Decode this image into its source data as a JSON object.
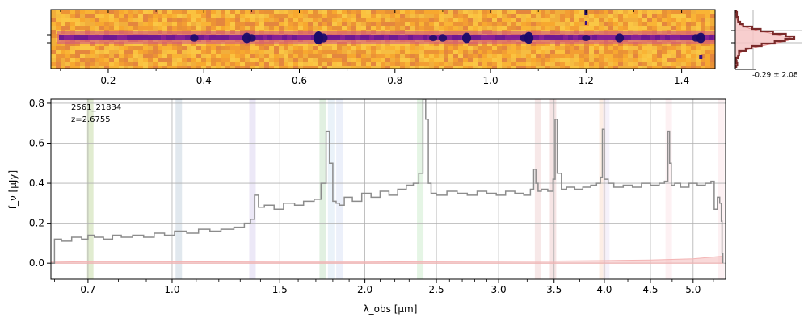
{
  "chart_data": [
    {
      "type": "heatmap",
      "panel": "2d-spectrum",
      "xlim": [
        0.08,
        1.47
      ],
      "xticks": [
        0.2,
        0.4,
        0.6,
        0.8,
        1.0,
        1.2,
        1.4
      ],
      "xtick_labels": [
        "0.2",
        "0.4",
        "0.6",
        "0.8",
        "1.0",
        "1.2",
        "1.4"
      ],
      "colormap": "plasma",
      "trace_color": "#6a0da0",
      "background_color": "#f8a62c",
      "emission_knots_x": [
        0.38,
        0.49,
        0.5,
        0.64,
        0.65,
        0.88,
        0.9,
        0.95,
        1.07,
        1.08,
        1.2,
        1.27,
        1.43,
        1.44
      ],
      "emission_knots_strength": [
        0.6,
        0.8,
        0.6,
        1.0,
        0.7,
        0.5,
        0.6,
        0.8,
        0.6,
        0.9,
        0.5,
        0.7,
        0.6,
        0.8
      ]
    },
    {
      "type": "area",
      "panel": "noise-histogram",
      "annotation": "-0.29 ± 2.08",
      "fill_color": "#f6c6c6",
      "line_color": "#7a2a2a"
    },
    {
      "type": "line",
      "panel": "1d-spectrum",
      "label_id": "2561_21834",
      "label_z": "z=2.6755",
      "ylabel": "f_ν [μJy]",
      "xlabel": "λ_obs [μm]",
      "ylim": [
        -0.08,
        0.82
      ],
      "yticks": [
        0.0,
        0.2,
        0.4,
        0.6,
        0.8
      ],
      "ytick_labels": [
        "0.0",
        "0.2",
        "0.4",
        "0.6",
        "0.8"
      ],
      "xticks": [
        0.7,
        1.0,
        1.5,
        2.0,
        2.5,
        3.0,
        3.5,
        4.0,
        4.5,
        5.0
      ],
      "xtick_labels": [
        "0.7",
        "1.0",
        "1.5",
        "2.0",
        "2.5",
        "3.0",
        "3.5",
        "4.0",
        "4.5",
        "5.0"
      ],
      "grid": true,
      "flux_color": "#8c8c8c",
      "error_color": "#f3b4b4",
      "series": [
        {
          "role": "flux",
          "x": [
            0.59,
            0.6,
            0.62,
            0.65,
            0.68,
            0.7,
            0.72,
            0.75,
            0.78,
            0.81,
            0.85,
            0.89,
            0.93,
            0.97,
            1.01,
            1.06,
            1.11,
            1.16,
            1.21,
            1.27,
            1.32,
            1.35,
            1.37,
            1.39,
            1.42,
            1.47,
            1.52,
            1.58,
            1.63,
            1.69,
            1.73,
            1.76,
            1.78,
            1.8,
            1.82,
            1.84,
            1.87,
            1.92,
            1.98,
            2.04,
            2.1,
            2.16,
            2.22,
            2.28,
            2.33,
            2.37,
            2.4,
            2.42,
            2.44,
            2.46,
            2.5,
            2.58,
            2.66,
            2.74,
            2.82,
            2.9,
            2.98,
            3.06,
            3.14,
            3.22,
            3.28,
            3.31,
            3.33,
            3.35,
            3.38,
            3.44,
            3.49,
            3.51,
            3.53,
            3.57,
            3.62,
            3.7,
            3.78,
            3.86,
            3.92,
            3.96,
            3.98,
            4.0,
            4.04,
            4.1,
            4.2,
            4.3,
            4.4,
            4.5,
            4.6,
            4.66,
            4.7,
            4.72,
            4.74,
            4.78,
            4.85,
            4.95,
            5.05,
            5.15,
            5.22,
            5.26,
            5.3,
            5.33,
            5.35,
            5.36,
            5.37
          ],
          "y": [
            0.0,
            0.12,
            0.11,
            0.13,
            0.12,
            0.14,
            0.13,
            0.12,
            0.14,
            0.13,
            0.14,
            0.13,
            0.15,
            0.14,
            0.16,
            0.15,
            0.17,
            0.16,
            0.17,
            0.18,
            0.2,
            0.22,
            0.34,
            0.28,
            0.29,
            0.27,
            0.3,
            0.29,
            0.31,
            0.32,
            0.4,
            0.66,
            0.5,
            0.31,
            0.3,
            0.29,
            0.33,
            0.31,
            0.35,
            0.33,
            0.36,
            0.34,
            0.37,
            0.39,
            0.4,
            0.45,
            0.82,
            0.72,
            0.4,
            0.35,
            0.34,
            0.36,
            0.35,
            0.34,
            0.36,
            0.35,
            0.34,
            0.36,
            0.35,
            0.34,
            0.37,
            0.47,
            0.4,
            0.36,
            0.37,
            0.36,
            0.42,
            0.72,
            0.45,
            0.37,
            0.38,
            0.37,
            0.38,
            0.39,
            0.4,
            0.43,
            0.67,
            0.42,
            0.4,
            0.38,
            0.39,
            0.38,
            0.4,
            0.39,
            0.4,
            0.41,
            0.66,
            0.5,
            0.39,
            0.4,
            0.38,
            0.4,
            0.39,
            0.4,
            0.41,
            0.27,
            0.33,
            0.3,
            0.21,
            0.05,
            0.0
          ]
        },
        {
          "role": "error",
          "x": [
            0.59,
            0.7,
            1.0,
            1.5,
            2.0,
            2.5,
            3.0,
            3.5,
            4.0,
            4.5,
            5.0,
            5.37
          ],
          "y": [
            0.005,
            0.008,
            0.007,
            0.006,
            0.006,
            0.008,
            0.009,
            0.011,
            0.013,
            0.016,
            0.022,
            0.035
          ]
        }
      ],
      "line_markers": [
        {
          "x": 0.707,
          "color": "#c8dcaa"
        },
        {
          "x": 1.027,
          "color": "#c8d6e0"
        },
        {
          "x": 1.36,
          "color": "#dcd6f0"
        },
        {
          "x": 1.74,
          "color": "#c8e4c8"
        },
        {
          "x": 1.79,
          "color": "#d8e8f4"
        },
        {
          "x": 1.84,
          "color": "#dce4f6"
        },
        {
          "x": 2.38,
          "color": "#cfeccf"
        },
        {
          "x": 3.35,
          "color": "#f0d6d6"
        },
        {
          "x": 3.49,
          "color": "#eecece"
        },
        {
          "x": 3.98,
          "color": "#fbe0d0"
        },
        {
          "x": 4.02,
          "color": "#ece6f6"
        },
        {
          "x": 4.71,
          "color": "#fbe6ea"
        },
        {
          "x": 5.35,
          "color": "#fbe6ea"
        }
      ]
    }
  ]
}
